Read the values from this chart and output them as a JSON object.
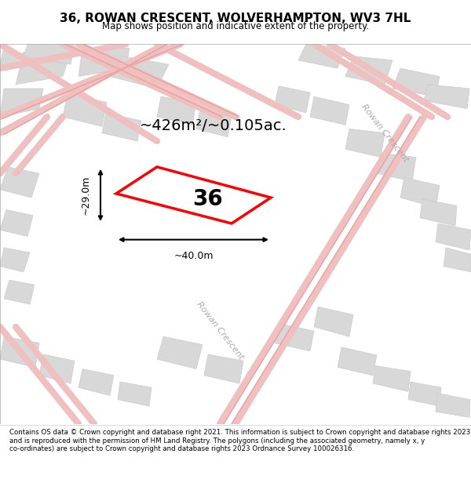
{
  "title": "36, ROWAN CRESCENT, WOLVERHAMPTON, WV3 7HL",
  "subtitle": "Map shows position and indicative extent of the property.",
  "footer": "Contains OS data © Crown copyright and database right 2021. This information is subject to Crown copyright and database rights 2023 and is reproduced with the permission of HM Land Registry. The polygons (including the associated geometry, namely x, y co-ordinates) are subject to Crown copyright and database rights 2023 Ordnance Survey 100026316.",
  "map_bg": "#f5f5f5",
  "building_color": "#d8d8d8",
  "building_edge": "#cccccc",
  "road_color": "#f0c0c0",
  "plot_color": "red",
  "plot_fill": "white",
  "area_text": "~426m²/~0.105ac.",
  "width_text": "~40.0m",
  "height_text": "~29.0m",
  "plot_number": "36",
  "road_label1": "Rowan Crescent",
  "road_label2": "Rowan Crescent"
}
